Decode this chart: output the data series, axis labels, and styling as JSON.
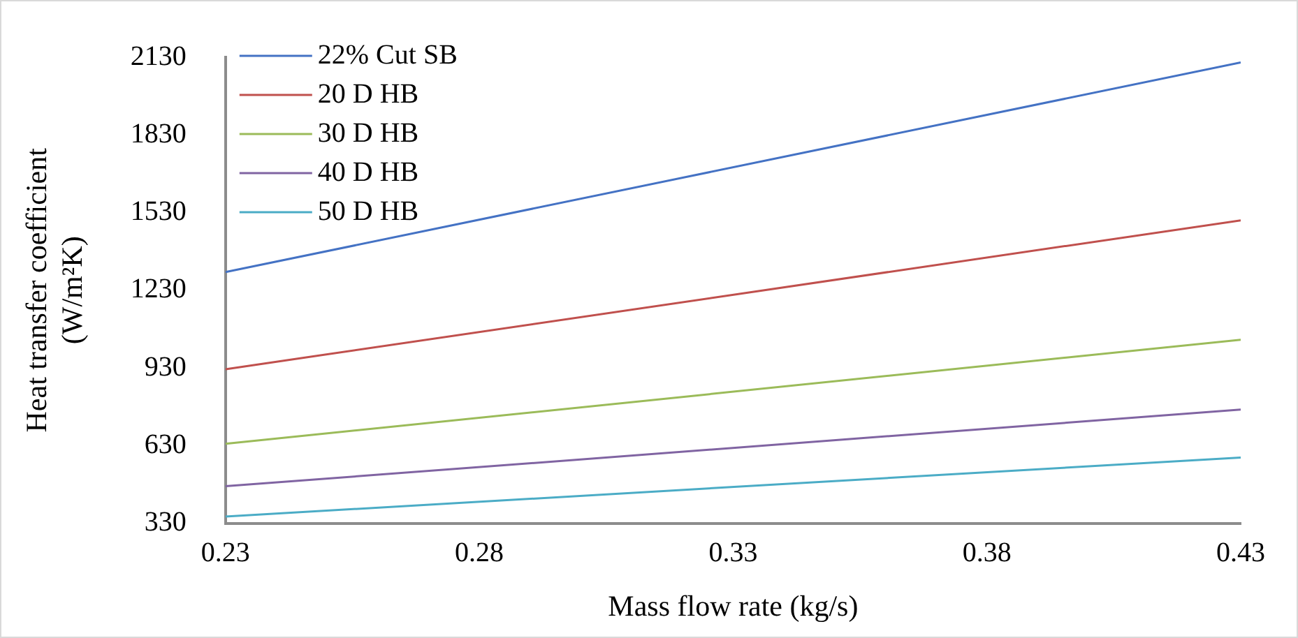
{
  "chart_data": {
    "type": "line",
    "xlabel": "Mass flow rate (kg/s)",
    "ylabel": "Heat transfer coefficient\n(W/m²K)",
    "x": [
      0.23,
      0.43
    ],
    "series": [
      {
        "name": "22% Cut SB",
        "color": "#4472c4",
        "values": [
          1300,
          2110
        ]
      },
      {
        "name": "20 D HB",
        "color": "#c0504d",
        "values": [
          925,
          1500
        ]
      },
      {
        "name": "30 D HB",
        "color": "#9bbb59",
        "values": [
          637,
          1039
        ]
      },
      {
        "name": "40 D HB",
        "color": "#8064a2",
        "values": [
          473,
          769
        ]
      },
      {
        "name": "50 D HB",
        "color": "#4bacc6",
        "values": [
          356,
          584
        ]
      }
    ],
    "xlim": [
      0.23,
      0.43
    ],
    "xticks": [
      0.23,
      0.28,
      0.33,
      0.38,
      0.43
    ],
    "ylim": [
      330,
      2130
    ],
    "yticks": [
      330,
      630,
      930,
      1230,
      1530,
      1830,
      2130
    ],
    "grid": false,
    "legend": "top left",
    "marker": "none",
    "line_style": "solid"
  }
}
